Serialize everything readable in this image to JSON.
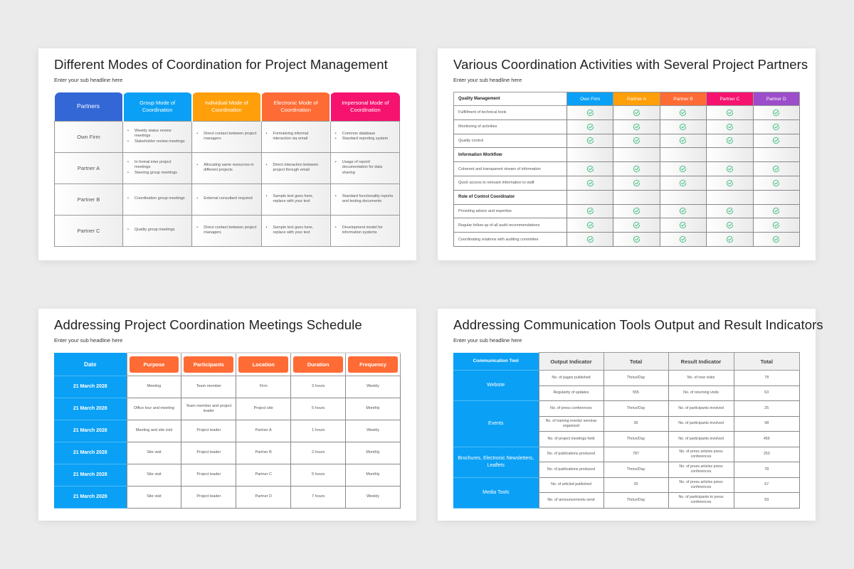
{
  "slides": [
    {
      "title": "Different Modes of Coordination for Project Management",
      "subtitle": "Enter your sub headline here",
      "headers": [
        {
          "label": "Partners",
          "color": "#3367d6"
        },
        {
          "label": "Group Mode of Coordination",
          "color": "#0aa0f5"
        },
        {
          "label": "Individual Mode of Coordination",
          "color": "#ff9f0a"
        },
        {
          "label": "Electronic Mode of Coordination",
          "color": "#ff6b35"
        },
        {
          "label": "Impersonal Mode of Coordination",
          "color": "#f5136f"
        }
      ],
      "rows": [
        {
          "partner": "Own Firm",
          "cells": [
            [
              "Weekly status review meetings",
              "Stakeholder review meetings"
            ],
            [
              "Direct contact between project managers"
            ],
            [
              "Formalizing informal interaction via email"
            ],
            [
              "Common database",
              "Standard reporting system"
            ]
          ]
        },
        {
          "partner": "Partner A",
          "cells": [
            [
              "In formal inter project meetings",
              "Steering group meetings"
            ],
            [
              "Allocating same resources in different projects"
            ],
            [
              "Direct interaction between project through email"
            ],
            [
              "Usage of report/ documentation for data sharing"
            ]
          ]
        },
        {
          "partner": "Partner B",
          "cells": [
            [
              "Coordination group meetings"
            ],
            [
              "External consultant required"
            ],
            [
              "Sample text goes here, replace with your text"
            ],
            [
              "Standard functionality reports and testing documents"
            ]
          ]
        },
        {
          "partner": "Partner C",
          "cells": [
            [
              "Quality group meetings"
            ],
            [
              "Direct contact between project managers"
            ],
            [
              "Sample text goes here, replace with your text"
            ],
            [
              "Development model for information systems"
            ]
          ]
        }
      ]
    },
    {
      "title": "Various Coordination Activities with Several Project Partners",
      "subtitle": "Enter your sub headline here",
      "first_header": "Quality Management",
      "partners": [
        {
          "label": "Own Firm",
          "color": "#0aa0f5"
        },
        {
          "label": "Partner A",
          "color": "#ff9f0a"
        },
        {
          "label": "Partner B",
          "color": "#ff6b35"
        },
        {
          "label": "Partner C",
          "color": "#f5136f"
        },
        {
          "label": "Partner D",
          "color": "#9b4dca"
        }
      ],
      "check_color": "#3dbd7d",
      "rows": [
        {
          "type": "item",
          "label": "Fulfillment of technical tools",
          "icon": "check-circle-icon"
        },
        {
          "type": "item",
          "label": "Monitoring of activities",
          "icon": "check-circle-icon"
        },
        {
          "type": "item",
          "label": "Quality control",
          "icon": "check-circle-icon"
        },
        {
          "type": "category",
          "label": "Information Workflow"
        },
        {
          "type": "item",
          "label": "Coherent and transparent stream of information",
          "icon": "check-circle-icon"
        },
        {
          "type": "item",
          "label": "Quick access to relevant information to staff",
          "icon": "check-circle-icon"
        },
        {
          "type": "category",
          "label": "Role of Control Coordinator"
        },
        {
          "type": "item",
          "label": "Providing advice and expertise",
          "icon": "check-circle-icon"
        },
        {
          "type": "item",
          "label": "Regular follow up of all audit recommendations",
          "icon": "check-circle-icon"
        },
        {
          "type": "item",
          "label": "Coordinating relations with auditing committee",
          "icon": "check-circle-icon"
        }
      ]
    },
    {
      "title": "Addressing Project Coordination Meetings Schedule",
      "subtitle": "Enter your sub headline here",
      "headers": [
        "Date",
        "Purpose",
        "Participants",
        "Location",
        "Duration",
        "Frequency"
      ],
      "rows": [
        [
          "21 March 2028",
          "Meeting",
          "Team member",
          "Firm",
          "3 hours",
          "Weekly"
        ],
        [
          "21 March 2028",
          "Office tour and meeting",
          "Team member and project leader",
          "Project site",
          "5 hours",
          "Monthly"
        ],
        [
          "21 March 2028",
          "Meeting and site visit",
          "Project leader",
          "Partner A",
          "1 hours",
          "Weekly"
        ],
        [
          "21 March 2028",
          "Site visit",
          "Project leader",
          "Partner B",
          "2 hours",
          "Monthly"
        ],
        [
          "21 March 2028",
          "Site visit",
          "Project leader",
          "Partner C",
          "5 hours",
          "Monthly"
        ],
        [
          "21 March 2028",
          "Site visit",
          "Project leader",
          "Partner D",
          "7 hours",
          "Weekly"
        ]
      ]
    },
    {
      "title": "Addressing Communication Tools Output and Result Indicators",
      "subtitle": "Enter your sub headline here",
      "headers": [
        "Communication Tool",
        "Output Indicator",
        "Total",
        "Result Indicator",
        "Total"
      ],
      "groups": [
        {
          "tool": "Website",
          "rows": [
            [
              "No. of pages published",
              "Thrice/Day",
              "No. of new visits",
              "78"
            ],
            [
              "Regularity of updates",
              "555",
              "No. of returning visits",
              "63"
            ]
          ]
        },
        {
          "tool": "Events",
          "rows": [
            [
              "No. of press conferences",
              "Thrice/Day",
              "No. of participants involved",
              "25"
            ],
            [
              "No. of training events/ seminar organized",
              "36",
              "No. of participants involved",
              "98"
            ],
            [
              "No. of project meetings held",
              "Thrice/Day",
              "No. of participants involved",
              "456"
            ]
          ]
        },
        {
          "tool": "Brochures, Electronic Newsletters, Leaflets",
          "rows": [
            [
              "No. of publications produced",
              "787",
              "No. of press articles press conferences",
              "253"
            ],
            [
              "No. of publications produced",
              "Thrice/Day",
              "No. of press articles press conferences",
              "78"
            ]
          ]
        },
        {
          "tool": "Media Tools",
          "rows": [
            [
              "No. of articled published",
              "25",
              "No. of press articles press conferences",
              "67"
            ],
            [
              "No. of announcements send",
              "Thrice/Day",
              "No. of participants to press conferences",
              "59"
            ]
          ]
        }
      ]
    }
  ]
}
